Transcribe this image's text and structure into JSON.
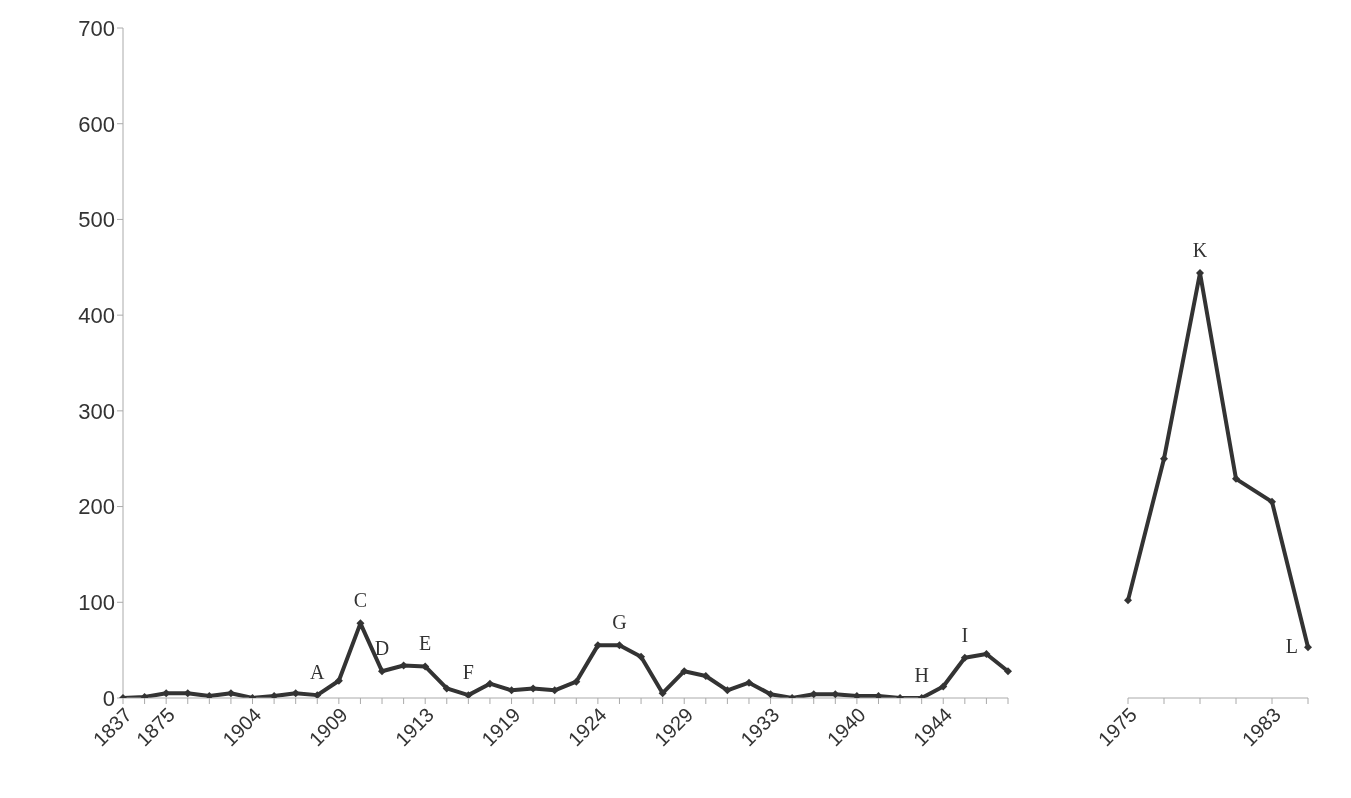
{
  "chart_data": [
    {
      "type": "line",
      "categories": [
        "1837",
        null,
        "1875",
        null,
        null,
        null,
        "1904",
        null,
        null,
        null,
        "1909",
        null,
        null,
        null,
        "1913",
        null,
        null,
        null,
        "1919",
        null,
        null,
        null,
        "1924",
        null,
        null,
        null,
        "1929",
        null,
        null,
        null,
        "1933",
        null,
        null,
        null,
        "1940",
        null,
        null,
        null,
        "1944",
        null,
        null,
        null
      ],
      "series": [
        {
          "color": "#333333",
          "values": [
            0,
            1,
            5,
            5,
            2,
            5,
            0,
            2,
            5,
            3,
            18,
            78,
            28,
            34,
            33,
            10,
            3,
            15,
            8,
            10,
            8,
            17,
            55,
            55,
            43,
            5,
            28,
            23,
            8,
            16,
            4,
            0,
            4,
            4,
            2,
            2,
            0,
            0,
            12,
            42,
            46,
            28
          ],
          "value_labels": [
            null,
            null,
            null,
            null,
            null,
            null,
            null,
            null,
            null,
            "A",
            null,
            "C",
            "D",
            null,
            "E",
            null,
            "F",
            null,
            null,
            null,
            null,
            null,
            null,
            "G",
            null,
            null,
            null,
            null,
            null,
            null,
            null,
            null,
            null,
            null,
            null,
            null,
            null,
            "H",
            null,
            "I",
            null,
            null
          ]
        }
      ],
      "ylim": [
        0,
        700
      ],
      "yticks": [
        0,
        100,
        200,
        300,
        400,
        500,
        600,
        700
      ],
      "grid": false,
      "legend": false,
      "marker": "diamond",
      "line_style": "solid"
    },
    {
      "type": "line",
      "categories": [
        "1975",
        null,
        null,
        null,
        "1983",
        null
      ],
      "series": [
        {
          "color": "#333333",
          "values": [
            102,
            250,
            444,
            229,
            205,
            53
          ],
          "value_labels": [
            null,
            null,
            "K",
            null,
            null,
            "L"
          ]
        }
      ],
      "ylim": [
        0,
        700
      ],
      "yticks": [
        0,
        100,
        200,
        300,
        400,
        500,
        600,
        700
      ],
      "tick_labels": "x",
      "grid": false,
      "legend": false,
      "marker": "diamond",
      "line_style": "solid"
    }
  ]
}
